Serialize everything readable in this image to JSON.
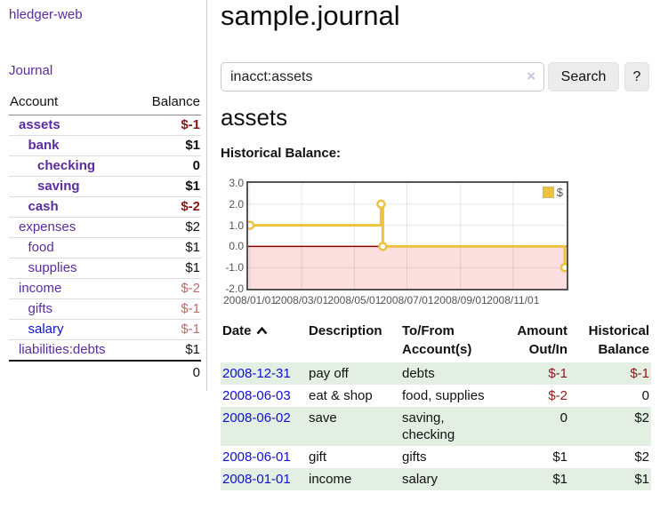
{
  "colors": {
    "link_purple": "#5a2ca0",
    "link_blue": "#0f0fd0",
    "negative_strong": "#8e1515",
    "negative_soft": "#c06a6a",
    "stripe_green": "#e2efe2",
    "chart_line": "#edc240",
    "chart_negative_fill": "#fbdede",
    "chart_zero_line": "#8b0000",
    "chart_border": "#545454",
    "button_bg": "#ececec"
  },
  "sidebar": {
    "brand": "hledger-web",
    "nav_journal": "Journal",
    "accounts_header": {
      "account": "Account",
      "balance": "Balance"
    },
    "accounts": [
      {
        "label": "assets",
        "balance": "$-1",
        "depth": 0,
        "bold": true,
        "neg": "strong",
        "link": "purple"
      },
      {
        "label": "bank",
        "balance": "$1",
        "depth": 1,
        "bold": true,
        "neg": "none",
        "link": "purple"
      },
      {
        "label": "checking",
        "balance": "0",
        "depth": 2,
        "bold": true,
        "neg": "none",
        "link": "purple"
      },
      {
        "label": "saving",
        "balance": "$1",
        "depth": 2,
        "bold": true,
        "neg": "none",
        "link": "purple"
      },
      {
        "label": "cash",
        "balance": "$-2",
        "depth": 1,
        "bold": true,
        "neg": "strong",
        "link": "purple"
      },
      {
        "label": "expenses",
        "balance": "$2",
        "depth": 0,
        "bold": false,
        "neg": "none",
        "link": "purple"
      },
      {
        "label": "food",
        "balance": "$1",
        "depth": 1,
        "bold": false,
        "neg": "none",
        "link": "purple"
      },
      {
        "label": "supplies",
        "balance": "$1",
        "depth": 1,
        "bold": false,
        "neg": "none",
        "link": "purple"
      },
      {
        "label": "income",
        "balance": "$-2",
        "depth": 0,
        "bold": false,
        "neg": "soft",
        "link": "purple"
      },
      {
        "label": "gifts",
        "balance": "$-1",
        "depth": 1,
        "bold": false,
        "neg": "soft",
        "link": "purple"
      },
      {
        "label": "salary",
        "balance": "$-1",
        "depth": 1,
        "bold": false,
        "neg": "soft",
        "link": "blue"
      },
      {
        "label": "liabilities:debts",
        "balance": "$1",
        "depth": 0,
        "bold": false,
        "neg": "none",
        "link": "purple"
      }
    ],
    "total": "0"
  },
  "main": {
    "title": "sample.journal",
    "search": {
      "value": "inacct:assets",
      "clear_icon": "×",
      "button_label": "Search",
      "help_label": "?"
    },
    "account_heading": "assets",
    "table": {
      "headers": [
        "Date",
        "Description",
        "To/From Account(s)",
        "Amount Out/In",
        "Historical Balance"
      ],
      "sort_column": "Date",
      "sort_direction": "ascending",
      "rows": [
        {
          "date": "2008-12-31",
          "description": "pay off",
          "accounts": "debts",
          "amount": "$-1",
          "amount_negative": true,
          "balance": "$-1",
          "balance_negative": true
        },
        {
          "date": "2008-06-03",
          "description": "eat & shop",
          "accounts": "food, supplies",
          "amount": "$-2",
          "amount_negative": true,
          "balance": "0",
          "balance_negative": false
        },
        {
          "date": "2008-06-02",
          "description": "save",
          "accounts": "saving, checking",
          "amount": "0",
          "amount_negative": false,
          "balance": "$2",
          "balance_negative": false
        },
        {
          "date": "2008-06-01",
          "description": "gift",
          "accounts": "gifts",
          "amount": "$1",
          "amount_negative": false,
          "balance": "$2",
          "balance_negative": false
        },
        {
          "date": "2008-01-01",
          "description": "income",
          "accounts": "salary",
          "amount": "$1",
          "amount_negative": false,
          "balance": "$1",
          "balance_negative": false
        }
      ]
    }
  },
  "chart_data": {
    "type": "line",
    "title": "Historical Balance:",
    "ylim": [
      -2,
      3
    ],
    "yticks": [
      3.0,
      2.0,
      1.0,
      0.0,
      -1.0,
      -2.0
    ],
    "ytick_labels": [
      "3.0",
      "2.0",
      "1.0",
      "0.0",
      "-1.0",
      "-2.0"
    ],
    "xtick_labels": [
      "2008/01/01",
      "2008/03/01",
      "2008/05/01",
      "2008/07/01",
      "2008/09/01",
      "2008/11/01"
    ],
    "x_range": [
      "2008-01-01",
      "2008-12-31"
    ],
    "series": [
      {
        "name": "$",
        "step": true,
        "points": [
          [
            "2008-01-01",
            1.0
          ],
          [
            "2008-06-01",
            2.0
          ],
          [
            "2008-06-03",
            0.0
          ],
          [
            "2008-12-31",
            -1.0
          ]
        ]
      }
    ],
    "grid": true,
    "legend_position": "top-right",
    "negative_region_shaded": true
  }
}
